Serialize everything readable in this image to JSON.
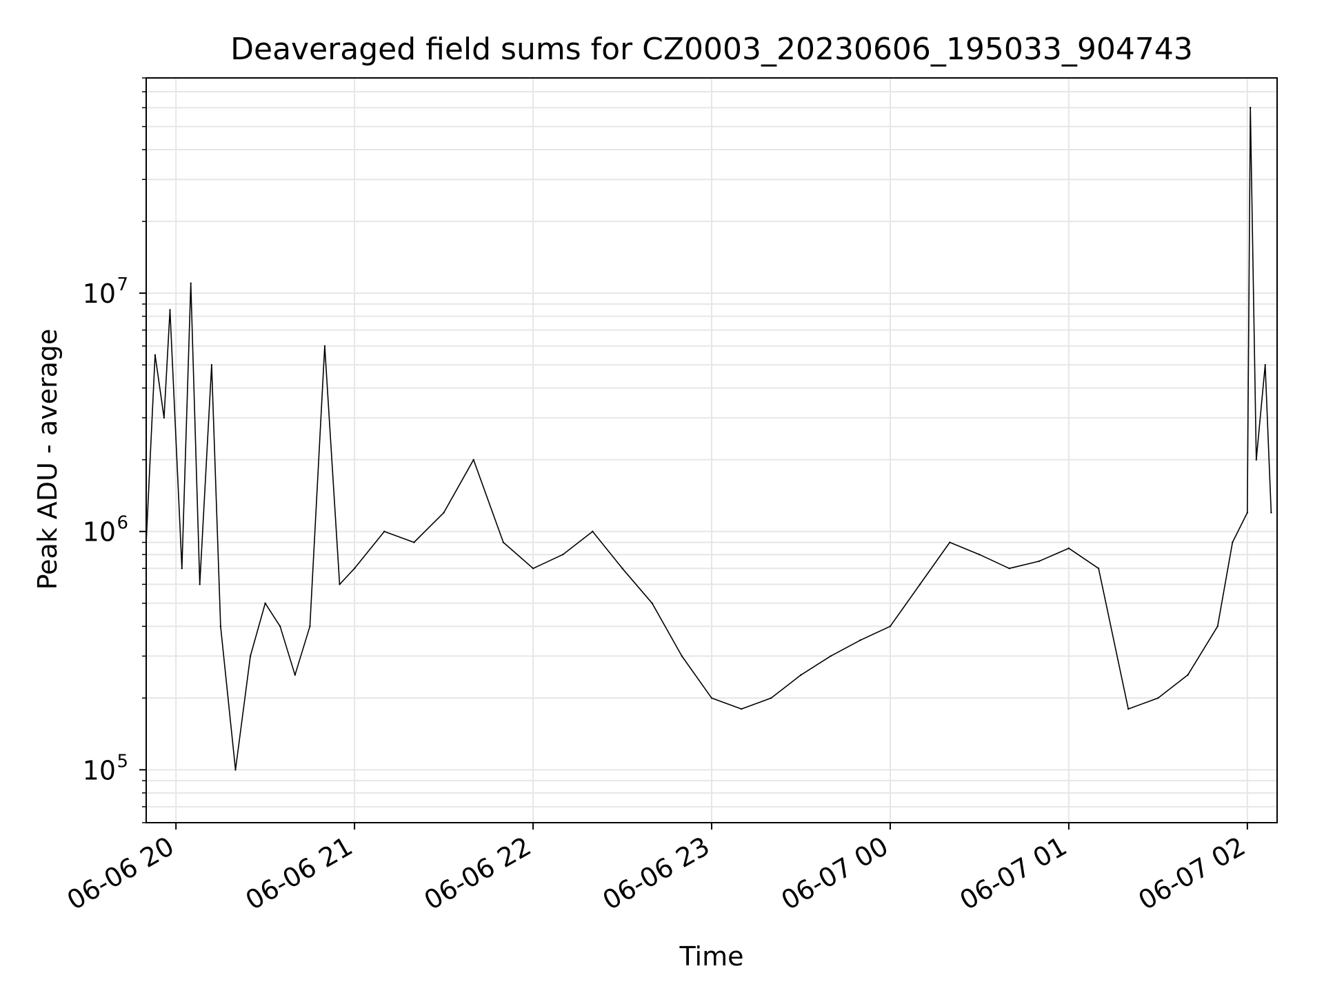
{
  "chart_data": {
    "type": "line",
    "title": "Deaveraged field sums for CZ0003_20230606_195033_904743",
    "xlabel": "Time",
    "ylabel": "Peak ADU - average",
    "x_axis_type": "datetime",
    "y_scale": "log",
    "xlim": [
      "2023-06-06 19:50",
      "2023-06-07 02:10"
    ],
    "ylim": [
      60000,
      80000000
    ],
    "x_tick_labels": [
      "06-06 20",
      "06-06 21",
      "06-06 22",
      "06-06 23",
      "06-07 00",
      "06-07 01",
      "06-07 02"
    ],
    "x_tick_times": [
      "2023-06-06 20:00",
      "2023-06-06 21:00",
      "2023-06-06 22:00",
      "2023-06-06 23:00",
      "2023-06-07 00:00",
      "2023-06-07 01:00",
      "2023-06-07 02:00"
    ],
    "y_tick_labels": [
      {
        "base": "10",
        "exp": "5"
      },
      {
        "base": "10",
        "exp": "6"
      },
      {
        "base": "10",
        "exp": "7"
      }
    ],
    "y_tick_values": [
      100000,
      1000000,
      10000000
    ],
    "grid": true,
    "line_color": "#000000",
    "grid_color": "#e6e6e6",
    "series": [
      {
        "x": [
          "2023-06-06 19:50",
          "2023-06-06 19:53",
          "2023-06-06 19:56",
          "2023-06-06 19:58",
          "2023-06-06 20:02",
          "2023-06-06 20:05",
          "2023-06-06 20:08",
          "2023-06-06 20:12",
          "2023-06-06 20:15",
          "2023-06-06 20:20",
          "2023-06-06 20:25",
          "2023-06-06 20:30",
          "2023-06-06 20:35",
          "2023-06-06 20:40",
          "2023-06-06 20:45",
          "2023-06-06 20:50",
          "2023-06-06 20:55",
          "2023-06-06 21:00",
          "2023-06-06 21:10",
          "2023-06-06 21:20",
          "2023-06-06 21:30",
          "2023-06-06 21:40",
          "2023-06-06 21:50",
          "2023-06-06 22:00",
          "2023-06-06 22:10",
          "2023-06-06 22:20",
          "2023-06-06 22:30",
          "2023-06-06 22:40",
          "2023-06-06 22:50",
          "2023-06-06 23:00",
          "2023-06-06 23:10",
          "2023-06-06 23:20",
          "2023-06-06 23:30",
          "2023-06-06 23:40",
          "2023-06-06 23:50",
          "2023-06-07 00:00",
          "2023-06-07 00:10",
          "2023-06-07 00:20",
          "2023-06-07 00:30",
          "2023-06-07 00:40",
          "2023-06-07 00:50",
          "2023-06-07 01:00",
          "2023-06-07 01:10",
          "2023-06-07 01:20",
          "2023-06-07 01:30",
          "2023-06-07 01:40",
          "2023-06-07 01:50",
          "2023-06-07 01:55",
          "2023-06-07 02:00",
          "2023-06-07 02:01",
          "2023-06-07 02:03",
          "2023-06-07 02:06",
          "2023-06-07 02:08"
        ],
        "y": [
          900000,
          5500000,
          3000000,
          8500000,
          700000,
          11000000,
          600000,
          5000000,
          400000,
          100000,
          300000,
          500000,
          400000,
          250000,
          400000,
          6000000,
          600000,
          700000,
          1000000,
          900000,
          1200000,
          2000000,
          900000,
          700000,
          800000,
          1000000,
          700000,
          500000,
          300000,
          200000,
          180000,
          200000,
          250000,
          300000,
          350000,
          400000,
          600000,
          900000,
          800000,
          700000,
          750000,
          850000,
          700000,
          180000,
          200000,
          250000,
          400000,
          900000,
          1200000,
          60000000,
          2000000,
          5000000,
          1200000
        ]
      }
    ]
  }
}
